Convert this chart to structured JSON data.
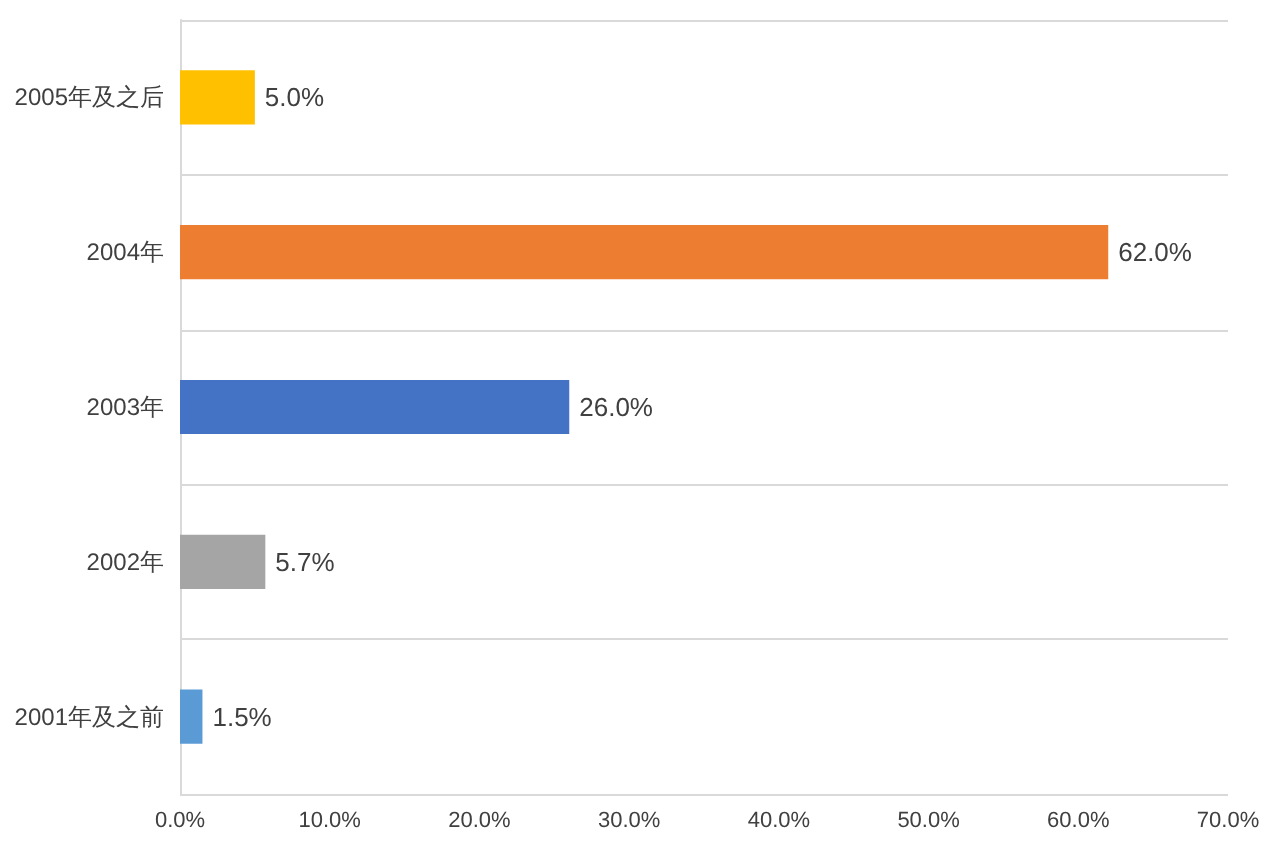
{
  "chart_data": {
    "type": "bar",
    "orientation": "horizontal",
    "categories": [
      "2005年及之后",
      "2004年",
      "2003年",
      "2002年",
      "2001年及之前"
    ],
    "values": [
      5.0,
      62.0,
      26.0,
      5.7,
      1.5
    ],
    "colors": [
      "#ffc000",
      "#ed7d31",
      "#4472c4",
      "#a5a5a5",
      "#5b9bd5"
    ],
    "value_labels": [
      "5.0%",
      "62.0%",
      "26.0%",
      "5.7%",
      "1.5%"
    ],
    "xlim": [
      0,
      70
    ],
    "xticks": [
      {
        "value": 0,
        "label": "0.0%"
      },
      {
        "value": 10,
        "label": "10.0%"
      },
      {
        "value": 20,
        "label": "20.0%"
      },
      {
        "value": 30,
        "label": "30.0%"
      },
      {
        "value": 40,
        "label": "40.0%"
      },
      {
        "value": 50,
        "label": "50.0%"
      },
      {
        "value": 60,
        "label": "60.0%"
      },
      {
        "value": 70,
        "label": "70.0%"
      }
    ],
    "grid": "y"
  }
}
